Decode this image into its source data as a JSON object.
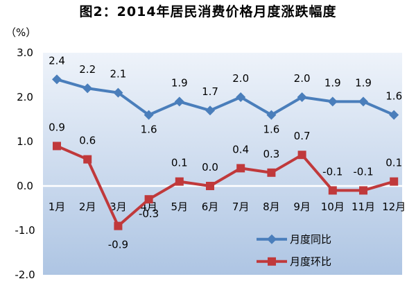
{
  "chart_data": {
    "type": "line",
    "title": "图2：2014年居民消费价格月度涨跌幅度",
    "unit_label": "（%）",
    "categories": [
      "1月",
      "2月",
      "3月",
      "4月",
      "5月",
      "6月",
      "7月",
      "8月",
      "9月",
      "10月",
      "11月",
      "12月"
    ],
    "y_ticks": [
      "3.0",
      "2.0",
      "1.0",
      "0.0",
      "-1.0",
      "-2.0"
    ],
    "ylim": [
      -2.0,
      3.0
    ],
    "grid": false,
    "legend_position": "bottom-right",
    "series": [
      {
        "name": "月度同比",
        "color": "#4a7ebb",
        "marker": "diamond",
        "values": [
          2.4,
          2.2,
          2.1,
          1.6,
          1.9,
          1.7,
          2.0,
          1.6,
          2.0,
          1.9,
          1.9,
          1.6
        ],
        "labels": [
          "2.4",
          "2.2",
          "2.1",
          "1.6",
          "1.9",
          "1.7",
          "2.0",
          "1.6",
          "2.0",
          "1.9",
          "1.9",
          "1.6"
        ]
      },
      {
        "name": "月度环比",
        "color": "#c0393b",
        "marker": "square",
        "values": [
          0.9,
          0.6,
          -0.9,
          -0.3,
          0.1,
          0.0,
          0.4,
          0.3,
          0.7,
          -0.1,
          -0.1,
          0.1
        ],
        "labels": [
          "0.9",
          "0.6",
          "-0.9",
          "-0.3",
          "0.1",
          "0.0",
          "0.4",
          "0.3",
          "0.7",
          "-0.1",
          "-0.1",
          "0.1"
        ]
      }
    ],
    "colors": {
      "plot_top": "#eef3fa",
      "plot_bottom": "#aec5e3",
      "zero_line": "#ffffff"
    }
  }
}
